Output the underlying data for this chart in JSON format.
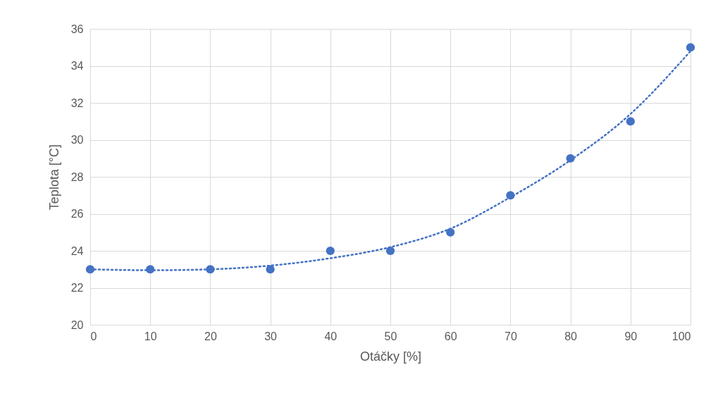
{
  "chart_data": {
    "type": "scatter",
    "xlabel": "Otáčky [%]",
    "ylabel": "Teplota [°C]",
    "x": [
      0,
      10,
      20,
      30,
      40,
      50,
      60,
      70,
      80,
      90,
      100
    ],
    "series": [
      {
        "color": "#4472c4",
        "marker": "circle",
        "values": [
          23,
          23,
          23,
          23,
          24,
          24,
          25,
          27,
          29,
          31,
          35
        ]
      },
      {
        "type": "line",
        "color": "#4472c4",
        "line_style": "dotted",
        "marker": "none",
        "x": [
          0,
          10,
          20,
          30,
          40,
          50,
          60,
          70,
          80,
          90,
          100
        ],
        "values": [
          23,
          22.95,
          23,
          23.2,
          23.6,
          24.2,
          25.2,
          26.9,
          28.9,
          31.4,
          34.8
        ]
      }
    ],
    "xlim": [
      0,
      100
    ],
    "xticks": [
      0,
      10,
      20,
      30,
      40,
      50,
      60,
      70,
      80,
      90,
      100
    ],
    "ylim": [
      20,
      36
    ],
    "yticks": [
      20,
      22,
      24,
      26,
      28,
      30,
      32,
      34,
      36
    ],
    "grid": true
  }
}
